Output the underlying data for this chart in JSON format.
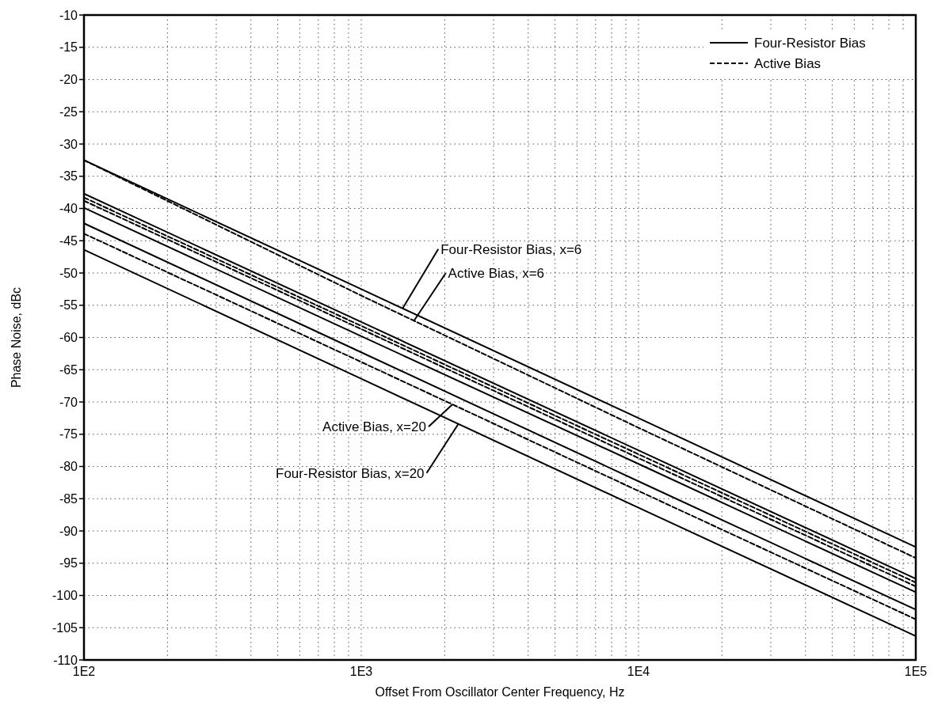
{
  "chart_data": {
    "type": "line",
    "xlabel": "Offset From Oscillator Center Frequency, Hz",
    "ylabel": "Phase Noise, dBc",
    "log": "x",
    "x": [
      100,
      1000,
      10000,
      100000
    ],
    "series": [
      {
        "name": "Four-Resistor Bias",
        "color": "#000000",
        "line_style": "solid",
        "values": [
          -32.5,
          -52.5,
          -72.5,
          -92.5
        ]
      },
      {
        "name": "Active Bias",
        "color": "#000000",
        "line_style": "dashed",
        "values": [
          -32.5,
          -53.5,
          -74,
          -94.2
        ]
      },
      {
        "color": "#000000",
        "line_style": "solid",
        "values": [
          -37.7,
          -57.6,
          -77.5,
          -97.4
        ]
      },
      {
        "color": "#000000",
        "line_style": "dashed",
        "values": [
          -38.3,
          -58.2,
          -78.1,
          -98
        ]
      },
      {
        "color": "#000000",
        "line_style": "dashed",
        "values": [
          -38.8,
          -58.7,
          -78.7,
          -98.6
        ]
      },
      {
        "color": "#000000",
        "line_style": "solid",
        "values": [
          -39.9,
          -59.8,
          -79.6,
          -99.5
        ]
      },
      {
        "color": "#000000",
        "line_style": "solid",
        "values": [
          -42.3,
          -62.3,
          -82.3,
          -102.2
        ]
      },
      {
        "color": "#000000",
        "line_style": "dashed",
        "values": [
          -43.9,
          -63.8,
          -83.8,
          -103.7
        ]
      },
      {
        "color": "#000000",
        "line_style": "solid",
        "values": [
          -46.4,
          -66.4,
          -86.4,
          -106.3
        ]
      }
    ],
    "xlim": [
      100,
      100000
    ],
    "xticks": [
      {
        "value": 100,
        "label": "1E2"
      },
      {
        "value": 200,
        "label": null
      },
      {
        "value": 300,
        "label": null
      },
      {
        "value": 400,
        "label": null
      },
      {
        "value": 500,
        "label": null
      },
      {
        "value": 600,
        "label": null
      },
      {
        "value": 700,
        "label": null
      },
      {
        "value": 800,
        "label": null
      },
      {
        "value": 900,
        "label": null
      },
      {
        "value": 1000,
        "label": "1E3"
      },
      {
        "value": 2000,
        "label": null
      },
      {
        "value": 3000,
        "label": null
      },
      {
        "value": 4000,
        "label": null
      },
      {
        "value": 5000,
        "label": null
      },
      {
        "value": 6000,
        "label": null
      },
      {
        "value": 7000,
        "label": null
      },
      {
        "value": 8000,
        "label": null
      },
      {
        "value": 9000,
        "label": null
      },
      {
        "value": 10000,
        "label": "1E4"
      },
      {
        "value": 20000,
        "label": null
      },
      {
        "value": 30000,
        "label": null
      },
      {
        "value": 40000,
        "label": null
      },
      {
        "value": 50000,
        "label": null
      },
      {
        "value": 60000,
        "label": null
      },
      {
        "value": 70000,
        "label": null
      },
      {
        "value": 80000,
        "label": null
      },
      {
        "value": 90000,
        "label": null
      },
      {
        "value": 100000,
        "label": "1E5"
      }
    ],
    "ylim": [
      -110,
      -10
    ],
    "yticks": [
      -110,
      -105,
      -100,
      -95,
      -90,
      -85,
      -80,
      -75,
      -70,
      -65,
      -60,
      -55,
      -50,
      -45,
      -40,
      -35,
      -30,
      -25,
      -20,
      -15,
      -10
    ],
    "grid": true,
    "legend": "top right",
    "annotations": [
      {
        "text": "Four-Resistor Bias, x=6",
        "x": 1410,
        "y": -55.5
      },
      {
        "text": "Active Bias, x=6",
        "x": 1550,
        "y": -57.4
      },
      {
        "text": "Active Bias, x=20",
        "x": 2130,
        "y": -70.4
      },
      {
        "text": "Four-Resistor Bias, x=20",
        "x": 2240,
        "y": -73.4
      }
    ]
  }
}
